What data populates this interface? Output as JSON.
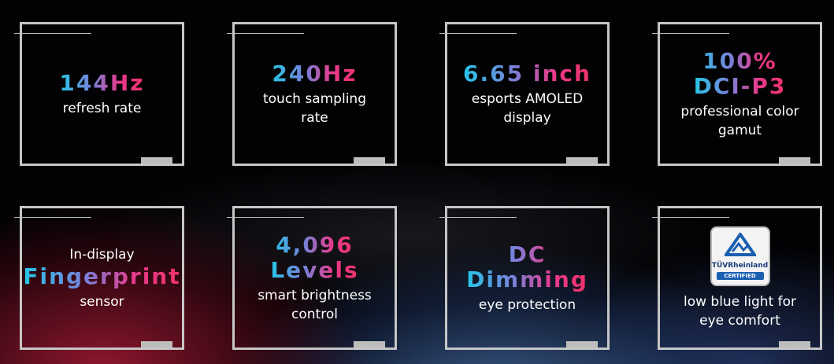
{
  "features": [
    {
      "highlight": [
        "144Hz"
      ],
      "desc": [
        "refresh rate"
      ]
    },
    {
      "highlight": [
        "240Hz"
      ],
      "desc": [
        "touch sampling",
        "rate"
      ]
    },
    {
      "highlight": [
        "6.65 inch"
      ],
      "desc": [
        "esports AMOLED",
        "display"
      ]
    },
    {
      "highlight": [
        "100%",
        "DCI-P3"
      ],
      "desc": [
        "professional color",
        "gamut"
      ]
    },
    {
      "pre": "In-display",
      "highlight": [
        "Fingerprint"
      ],
      "desc": [
        "sensor"
      ]
    },
    {
      "highlight": [
        "4,096",
        "Levels"
      ],
      "desc": [
        "smart brightness",
        "control"
      ]
    },
    {
      "highlight": [
        "DC",
        "Dimming"
      ],
      "desc": [
        "eye protection"
      ]
    },
    {
      "badge": {
        "brand": "TÜVRheinland",
        "label": "CERTIFIED"
      },
      "desc": [
        "low blue light for",
        "eye comfort"
      ]
    }
  ]
}
